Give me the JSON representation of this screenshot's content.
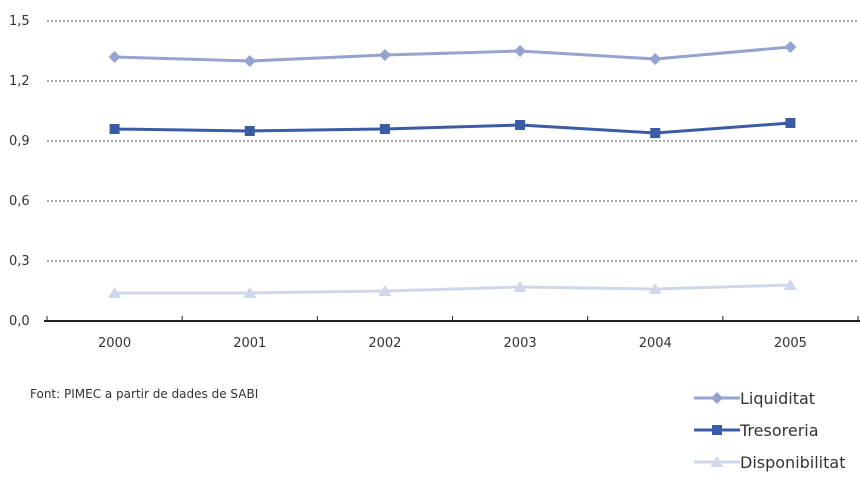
{
  "chart_data": {
    "type": "line",
    "categories": [
      "2000",
      "2001",
      "2002",
      "2003",
      "2004",
      "2005"
    ],
    "y_ticks": [
      "0,0",
      "0,3",
      "0,6",
      "0,9",
      "1,2",
      "1,5"
    ],
    "ylim": [
      0,
      1.5
    ],
    "grid": "horizontal dashed",
    "legend_position": "bottom-right",
    "series": [
      {
        "name": "Liquiditat",
        "values": [
          1.32,
          1.3,
          1.33,
          1.35,
          1.31,
          1.37
        ],
        "color": "#95a3cf",
        "marker": "diamond"
      },
      {
        "name": "Tresoreria",
        "values": [
          0.96,
          0.95,
          0.96,
          0.98,
          0.94,
          0.99
        ],
        "color": "#3b5ba7",
        "marker": "square"
      },
      {
        "name": "Disponibilitat",
        "values": [
          0.14,
          0.14,
          0.15,
          0.17,
          0.16,
          0.18
        ],
        "color": "#d1d7ea",
        "marker": "triangle"
      }
    ]
  },
  "source": "Font: PIMEC a partir de dades de SABI"
}
